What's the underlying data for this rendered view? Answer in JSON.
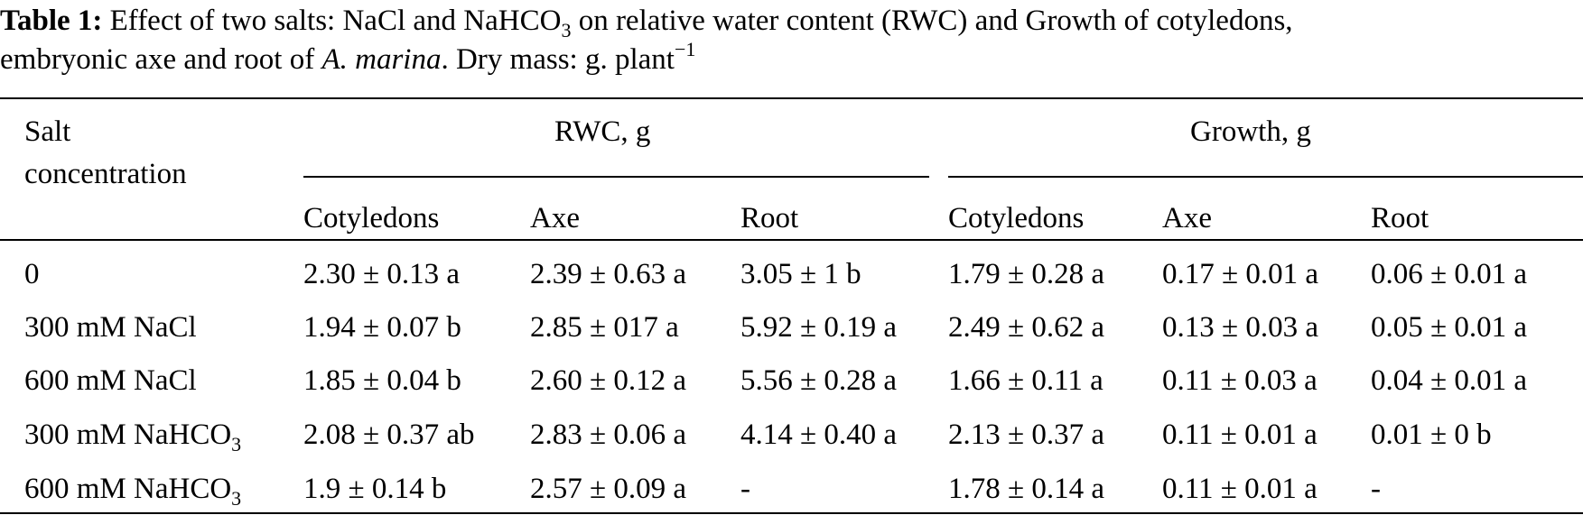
{
  "caption": {
    "label": "Table 1:",
    "text_before_sub": "Effect of two salts: NaCl and NaHCO",
    "sub": "3",
    "text_after_sub": " on relative water content (RWC) and Growth of cotyledons,",
    "line2_a": "embryonic axe and root of ",
    "species": "A. marina",
    "line2_b": ". Dry mass: g. plant",
    "sup": "−1"
  },
  "header": {
    "salt_line1": "Salt",
    "salt_line2": "concentration",
    "group_rwc": "RWC, g",
    "group_growth": "Growth, g",
    "sub_cols": [
      "Cotyledons",
      "Axe",
      "Root",
      "Cotyledons",
      "Axe",
      "Root"
    ]
  },
  "rows": [
    {
      "label": "0",
      "label_sub": "",
      "cells": [
        "2.30 ± 0.13 a",
        "2.39 ± 0.63 a",
        "3.05 ± 1 b",
        "1.79 ± 0.28 a",
        "0.17 ± 0.01 a",
        "0.06 ± 0.01 a"
      ]
    },
    {
      "label": "300 mM NaCl",
      "label_sub": "",
      "cells": [
        "1.94 ± 0.07 b",
        "2.85 ± 017 a",
        "5.92 ± 0.19 a",
        "2.49 ± 0.62 a",
        "0.13 ± 0.03 a",
        "0.05 ± 0.01 a"
      ]
    },
    {
      "label": "600 mM NaCl",
      "label_sub": "",
      "cells": [
        "1.85 ± 0.04 b",
        "2.60 ± 0.12 a",
        "5.56 ± 0.28 a",
        "1.66 ± 0.11 a",
        "0.11 ± 0.03 a",
        "0.04 ± 0.01 a"
      ]
    },
    {
      "label": "300 mM NaHCO",
      "label_sub": "3",
      "cells": [
        "2.08 ± 0.37 ab",
        "2.83 ± 0.06 a",
        "4.14 ± 0.40 a",
        "2.13 ± 0.37 a",
        "0.11 ± 0.01 a",
        "0.01 ± 0 b"
      ]
    },
    {
      "label": "600 mM NaHCO",
      "label_sub": "3",
      "cells": [
        "1.9 ± 0.14 b",
        "2.57 ± 0.09 a",
        "-",
        "1.78 ± 0.14 a",
        "0.11 ± 0.01 a",
        "-"
      ]
    }
  ]
}
